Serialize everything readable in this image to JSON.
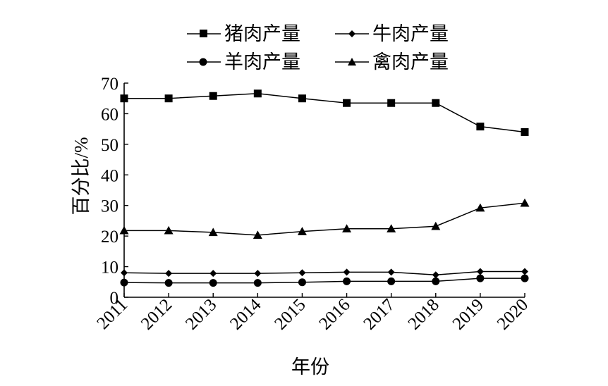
{
  "chart_data": {
    "type": "line",
    "title": "",
    "xlabel": "年份",
    "ylabel": "百分比/%",
    "x": [
      "2011",
      "2012",
      "2013",
      "2014",
      "2015",
      "2016",
      "2017",
      "2018",
      "2019",
      "2020"
    ],
    "ylim": [
      0,
      70
    ],
    "yticks": [
      "0",
      "10",
      "20",
      "30",
      "40",
      "50",
      "60",
      "70"
    ],
    "grid": false,
    "legend_position": "top",
    "series": [
      {
        "name": "猪肉产量",
        "marker": "square",
        "values": [
          65.0,
          65.0,
          65.8,
          66.6,
          65.0,
          63.5,
          63.5,
          63.5,
          55.8,
          54.0
        ]
      },
      {
        "name": "牛肉产量",
        "marker": "diamond",
        "values": [
          8.0,
          7.8,
          7.8,
          7.8,
          8.0,
          8.2,
          8.2,
          7.3,
          8.4,
          8.4
        ]
      },
      {
        "name": "羊肉产量",
        "marker": "circle",
        "values": [
          4.8,
          4.7,
          4.7,
          4.7,
          4.9,
          5.2,
          5.2,
          5.2,
          6.2,
          6.2
        ]
      },
      {
        "name": "禽肉产量",
        "marker": "triangle",
        "values": [
          21.8,
          21.8,
          21.2,
          20.3,
          21.5,
          22.4,
          22.4,
          23.2,
          29.2,
          30.8
        ]
      }
    ]
  }
}
